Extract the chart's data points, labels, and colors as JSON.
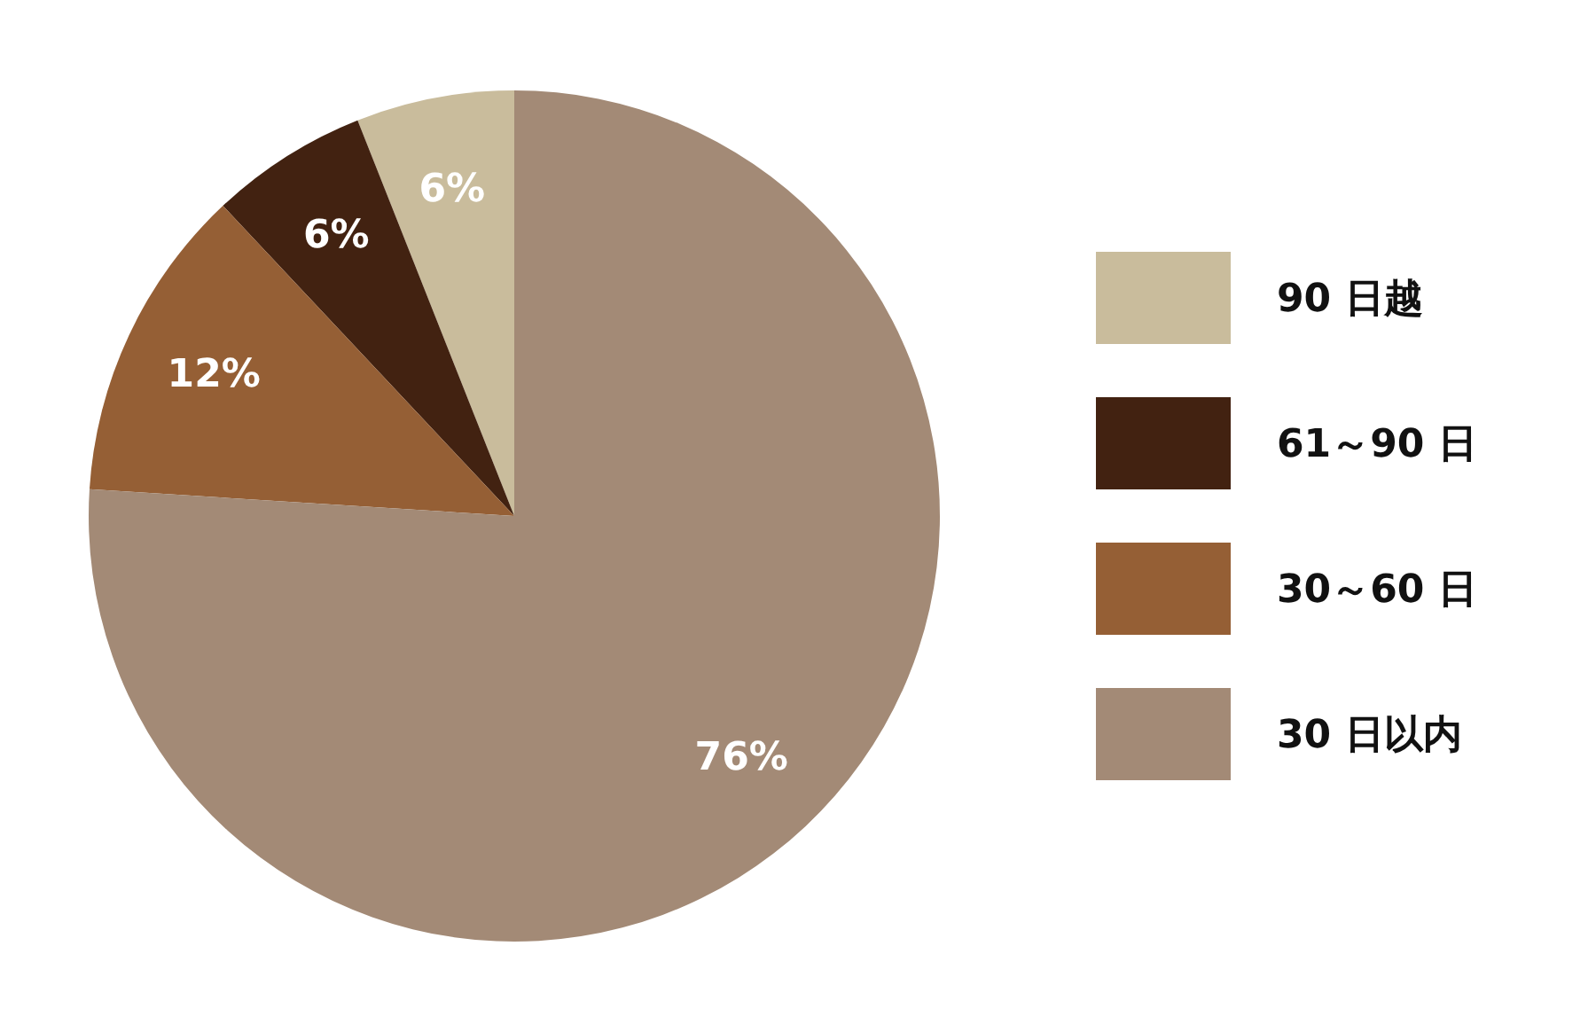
{
  "chart_data": {
    "type": "pie",
    "categories": [
      "90 日越",
      "61～90 日",
      "30～60 日",
      "30 日以内"
    ],
    "values": [
      6,
      6,
      12,
      76
    ],
    "colors": [
      "#c9bc9c",
      "#422211",
      "#955f35",
      "#a38a76"
    ],
    "value_labels": [
      "6%",
      "6%",
      "12%",
      "76%"
    ],
    "legend": "right"
  }
}
